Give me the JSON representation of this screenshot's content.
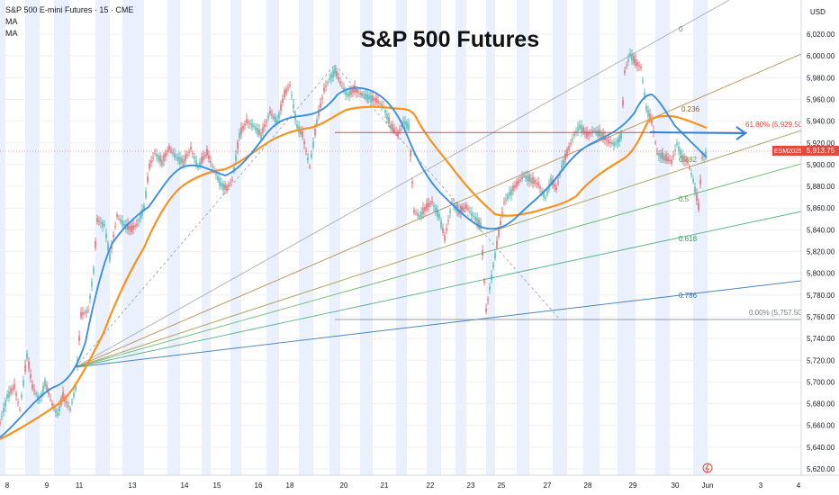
{
  "header": {
    "symbol_line": "S&P 500 E-mini Futures · 15 · CME",
    "indicators": [
      "MA",
      "MA"
    ]
  },
  "annotation_title": "S&P 500 Futures",
  "price_axis": {
    "currency": "USD",
    "ticks": [
      "6,020.00",
      "6,000.00",
      "5,980.00",
      "5,960.00",
      "5,940.00",
      "5,920.00",
      "5,900.00",
      "5,880.00",
      "5,860.00",
      "5,840.00",
      "5,820.00",
      "5,800.00",
      "5,780.00",
      "5,760.00",
      "5,740.00",
      "5,720.00",
      "5,700.00",
      "5,680.00",
      "5,660.00",
      "5,640.00",
      "5,620.00"
    ],
    "last_price_badge": "5,913.75",
    "symbol_badge": "ESM2025"
  },
  "time_axis": {
    "labels": [
      "8",
      "9",
      "11",
      "13",
      "14",
      "15",
      "16",
      "18",
      "20",
      "21",
      "22",
      "23",
      "25",
      "27",
      "28",
      "29",
      "30",
      "Jun",
      "3",
      "4"
    ]
  },
  "fib_labels": {
    "level_0": "0",
    "level_0236": "0.236",
    "level_0382": "0.382",
    "level_05": "0.5",
    "level_0618": "0.618",
    "level_0786": "0.786",
    "retracement_618": "61.80% (5,929.50)",
    "retracement_0": "0.00% (5,757.50)"
  },
  "colors": {
    "up": "#26a69a",
    "down": "#d9434b",
    "ma_fast": "#3b8fe0",
    "ma_slow": "#f7931e",
    "resistance": "#e04a3f",
    "arrow": "#2f7fe0",
    "session_band": "#e3ecfb"
  },
  "chart_data": {
    "type": "line",
    "title": "S&P 500 Futures",
    "instrument": "S&P 500 E-mini Futures",
    "interval": "15",
    "exchange": "CME",
    "ylim": [
      5610,
      6040
    ],
    "y_unit": "USD",
    "last_price": 5913.75,
    "x": [
      "8",
      "9",
      "11",
      "13",
      "14",
      "15",
      "16",
      "18",
      "20",
      "21",
      "22",
      "23",
      "25",
      "27",
      "28",
      "29",
      "30",
      "Jun",
      "3",
      "4"
    ],
    "series": [
      {
        "name": "Price",
        "values": [
          5700,
          5710,
          5680,
          5870,
          5918,
          5905,
          5925,
          5945,
          5978,
          5935,
          5860,
          5850,
          5895,
          5905,
          5935,
          6005,
          5915,
          5910,
          null,
          null
        ]
      },
      {
        "name": "MA",
        "values": [
          5665,
          5695,
          5700,
          5845,
          5905,
          5890,
          5920,
          5938,
          5955,
          5940,
          5880,
          5845,
          5860,
          5885,
          5912,
          5958,
          5930,
          5915,
          null,
          null
        ]
      },
      {
        "name": "MA",
        "values": [
          5650,
          5668,
          5690,
          5820,
          5880,
          5888,
          5910,
          5925,
          5948,
          5950,
          5900,
          5862,
          5858,
          5868,
          5892,
          5930,
          5935,
          5925,
          null,
          null
        ]
      }
    ],
    "levels": [
      {
        "label": "61.80% (5,929.50)",
        "y": 5929.5
      },
      {
        "label": "0.00% (5,757.50)",
        "y": 5757.5
      }
    ],
    "grid": true
  }
}
